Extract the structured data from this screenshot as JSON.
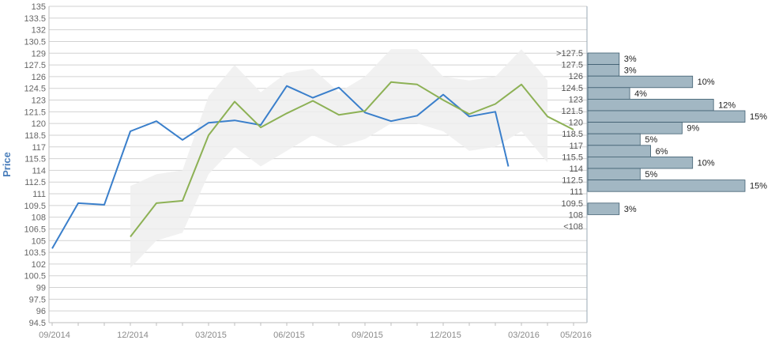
{
  "chart_data": {
    "type": "line",
    "ylabel": "Price",
    "ylim": [
      94.5,
      135
    ],
    "y_ticks": [
      "94.5",
      "96",
      "97.5",
      "99",
      "100.5",
      "102",
      "103.5",
      "105",
      "106.5",
      "108",
      "109.5",
      "111",
      "112.5",
      "114",
      "115.5",
      "117",
      "118.5",
      "120",
      "121.5",
      "123",
      "124.5",
      "126",
      "127.5",
      "129",
      "130.5",
      "132",
      "133.5",
      "135"
    ],
    "x_tick_labels": [
      {
        "label": "09/2014",
        "month": 0
      },
      {
        "label": "12/2014",
        "month": 3
      },
      {
        "label": "03/2015",
        "month": 6
      },
      {
        "label": "06/2015",
        "month": 9
      },
      {
        "label": "09/2015",
        "month": 12
      },
      {
        "label": "12/2015",
        "month": 15
      },
      {
        "label": "03/2016",
        "month": 18
      },
      {
        "label": "05/2016",
        "month": 20
      }
    ],
    "series": [
      {
        "color": "#3a7fcb",
        "x": [
          0,
          1,
          2,
          3,
          4,
          5,
          6,
          7,
          8,
          9,
          10,
          11,
          12,
          13,
          14,
          15,
          16,
          17,
          17.5
        ],
        "y": [
          104.0,
          109.8,
          109.6,
          119.0,
          120.3,
          117.9,
          120.1,
          120.4,
          119.8,
          124.8,
          123.3,
          124.6,
          121.4,
          120.3,
          121.0,
          123.7,
          120.9,
          121.5,
          114.5
        ]
      },
      {
        "color": "#8db155",
        "x": [
          3,
          4,
          5,
          6,
          7,
          8,
          9,
          10,
          11,
          12,
          13,
          14,
          15,
          16,
          17,
          18,
          19,
          20
        ],
        "y": [
          105.5,
          109.8,
          110.1,
          118.5,
          122.8,
          119.5,
          121.3,
          122.9,
          121.1,
          121.6,
          125.3,
          125.0,
          123.0,
          121.2,
          122.5,
          125.0,
          120.9,
          119.2
        ]
      }
    ],
    "band": {
      "color": "#eeeeee",
      "x": [
        3,
        4,
        5,
        6,
        7,
        8,
        9,
        10,
        11,
        12,
        13,
        14,
        15,
        16,
        17,
        18,
        19
      ],
      "upper": [
        112.0,
        113.5,
        114.0,
        123.5,
        127.5,
        124.0,
        126.5,
        127.0,
        124.0,
        126.0,
        129.5,
        129.5,
        126.0,
        125.5,
        126.0,
        129.5,
        125.5
      ],
      "lower": [
        101.5,
        105.0,
        106.0,
        113.5,
        117.0,
        114.5,
        116.5,
        118.5,
        117.0,
        118.0,
        120.0,
        120.0,
        119.0,
        116.5,
        117.0,
        119.0,
        115.0
      ]
    },
    "distribution": {
      "color": "#a2b7c3",
      "buckets": [
        {
          "label": ">127.5",
          "pct": 3,
          "pct_label": "3%"
        },
        {
          "label": "127.5",
          "pct": 3,
          "pct_label": "3%"
        },
        {
          "label": "126",
          "pct": 10,
          "pct_label": "10%"
        },
        {
          "label": "124.5",
          "pct": 4,
          "pct_label": "4%"
        },
        {
          "label": "123",
          "pct": 12,
          "pct_label": "12%"
        },
        {
          "label": "121.5",
          "pct": 15,
          "pct_label": "15%"
        },
        {
          "label": "120",
          "pct": 9,
          "pct_label": "9%"
        },
        {
          "label": "118.5",
          "pct": 5,
          "pct_label": "5%"
        },
        {
          "label": "117",
          "pct": 6,
          "pct_label": "6%"
        },
        {
          "label": "115.5",
          "pct": 10,
          "pct_label": "10%"
        },
        {
          "label": "114",
          "pct": 5,
          "pct_label": "5%"
        },
        {
          "label": "112.5",
          "pct": 15,
          "pct_label": "15%"
        },
        {
          "label": "111",
          "pct": 0,
          "pct_label": ""
        },
        {
          "label": "109.5",
          "pct": 3,
          "pct_label": "3%"
        },
        {
          "label": "108",
          "pct": 0,
          "pct_label": ""
        },
        {
          "label": "<108",
          "pct": 0,
          "pct_label": ""
        }
      ]
    }
  }
}
